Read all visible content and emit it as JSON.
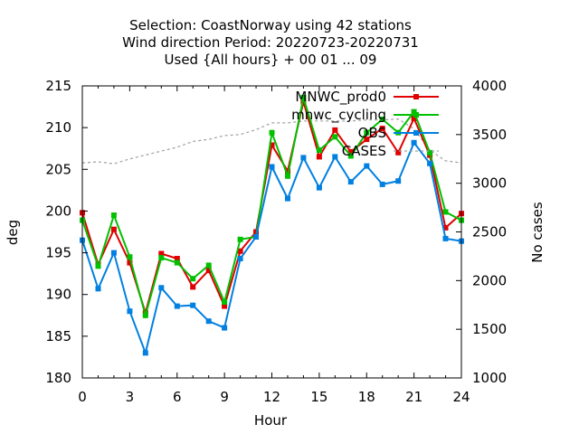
{
  "chart_data": {
    "type": "line",
    "title_lines": [
      "Selection: CoastNorway using    42 stations",
      "Wind direction   Period: 20220723-20220731",
      "Used {All hours} + 00 01 ... 09"
    ],
    "xlabel": "Hour",
    "ylabel": "deg",
    "y2label": "No cases",
    "xlim": [
      0,
      24
    ],
    "ylim": [
      180,
      215
    ],
    "y2lim": [
      1000,
      4000
    ],
    "xticks": [
      "0",
      "3",
      "6",
      "9",
      "12",
      "15",
      "18",
      "21",
      "24"
    ],
    "yticks": [
      "180",
      "185",
      "190",
      "195",
      "200",
      "205",
      "210",
      "215"
    ],
    "y2ticks": [
      "1000",
      "1500",
      "2000",
      "2500",
      "3000",
      "3500",
      "4000"
    ],
    "grid": false,
    "legend_position": "top-right",
    "x": [
      0,
      1,
      2,
      3,
      4,
      5,
      6,
      7,
      8,
      9,
      10,
      11,
      12,
      13,
      14,
      15,
      16,
      17,
      18,
      19,
      20,
      21,
      22,
      23,
      24
    ],
    "series": [
      {
        "name": "MNWC_prod0",
        "color": "#e00000",
        "axis": "y",
        "style": "solid",
        "marker": "square",
        "values": [
          199.8,
          193.6,
          197.8,
          193.8,
          187.8,
          194.9,
          194.3,
          190.9,
          192.9,
          188.6,
          195.2,
          197.5,
          207.9,
          204.8,
          213.1,
          206.5,
          209.7,
          207.1,
          208.6,
          209.9,
          207.0,
          211.1,
          206.7,
          198.0,
          199.7
        ]
      },
      {
        "name": "mnwc_cycling",
        "color": "#00c000",
        "axis": "y",
        "style": "solid",
        "marker": "square",
        "values": [
          198.9,
          193.4,
          199.5,
          194.5,
          187.5,
          194.4,
          193.8,
          191.9,
          193.5,
          189.1,
          196.6,
          196.9,
          209.4,
          204.2,
          213.6,
          207.3,
          208.9,
          206.6,
          209.4,
          211.0,
          209.4,
          211.9,
          207.0,
          199.9,
          198.9
        ]
      },
      {
        "name": "OBS",
        "color": "#0080e0",
        "axis": "y",
        "style": "solid",
        "marker": "square",
        "values": [
          196.5,
          190.7,
          195.0,
          188.0,
          183.0,
          190.8,
          188.6,
          188.7,
          186.8,
          186.0,
          194.3,
          196.9,
          205.3,
          201.5,
          206.4,
          202.8,
          206.5,
          203.5,
          205.4,
          203.2,
          203.6,
          208.2,
          205.7,
          196.7,
          196.4
        ]
      },
      {
        "name": "CASES",
        "color": "#a0a0a0",
        "axis": "y2",
        "style": "dashed",
        "marker": "none",
        "values": [
          3210,
          3220,
          3200,
          3250,
          3290,
          3330,
          3370,
          3430,
          3450,
          3490,
          3500,
          3550,
          3620,
          3620,
          3640,
          3640,
          3640,
          3640,
          3650,
          3650,
          3660,
          3560,
          3340,
          3230,
          3210
        ]
      }
    ]
  }
}
